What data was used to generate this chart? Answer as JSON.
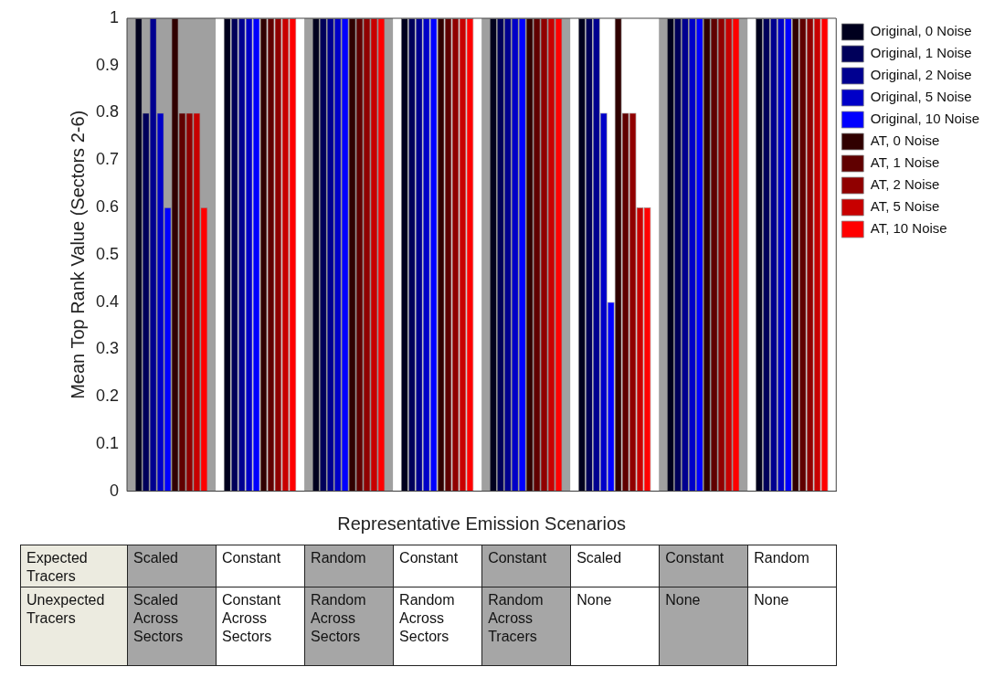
{
  "chart_data": {
    "type": "bar",
    "xlabel": "Representative Emission Scenarios",
    "ylabel": "Mean Top Rank Value (Sectors 2-6)",
    "categories": [
      null,
      null,
      null,
      null,
      null,
      null,
      null,
      null
    ],
    "series": [
      {
        "name": "Original, 0 Noise",
        "color": "#00001e",
        "values": [
          1,
          1,
          1,
          1,
          1,
          1,
          1,
          1
        ]
      },
      {
        "name": "Original, 1 Noise",
        "color": "#00005a",
        "values": [
          0.8,
          1,
          1,
          1,
          1,
          1,
          1,
          1
        ]
      },
      {
        "name": "Original, 2 Noise",
        "color": "#000090",
        "values": [
          1,
          1,
          1,
          1,
          1,
          1,
          1,
          1
        ]
      },
      {
        "name": "Original, 5 Noise",
        "color": "#0000c8",
        "values": [
          0.8,
          1,
          1,
          1,
          1,
          0.8,
          1,
          1
        ]
      },
      {
        "name": "Original, 10 Noise",
        "color": "#0000ff",
        "values": [
          0.6,
          1,
          1,
          1,
          1,
          0.4,
          1,
          1
        ]
      },
      {
        "name": "AT, 0 Noise",
        "color": "#300000",
        "values": [
          1,
          1,
          1,
          1,
          1,
          1,
          1,
          1
        ]
      },
      {
        "name": "AT, 1 Noise",
        "color": "#600000",
        "values": [
          0.8,
          1,
          1,
          1,
          1,
          0.8,
          1,
          1
        ]
      },
      {
        "name": "AT, 2 Noise",
        "color": "#900000",
        "values": [
          0.8,
          1,
          1,
          1,
          1,
          0.8,
          1,
          1
        ]
      },
      {
        "name": "AT, 5 Noise",
        "color": "#c80000",
        "values": [
          0.8,
          1,
          1,
          1,
          1,
          0.6,
          1,
          1
        ]
      },
      {
        "name": "AT, 10 Noise",
        "color": "#ff0000",
        "values": [
          0.6,
          1,
          1,
          1,
          1,
          0.6,
          1,
          1
        ]
      }
    ],
    "ylim": [
      0,
      1
    ],
    "yticks": [
      0,
      0.1,
      0.2,
      0.3,
      0.4,
      0.5,
      0.6,
      0.7,
      0.8,
      0.9,
      1
    ],
    "annotations": [
      "Expected Tracers",
      "Scaled",
      "Constant",
      "Random",
      "Constant",
      "Constant",
      "Scaled",
      "Constant",
      "Random",
      "Unexpected Tracers",
      "Scaled Across Sectors",
      "Constant Across Sectors",
      "Random Across Sectors",
      "Random Across Sectors",
      "Random Across Tracers",
      "None",
      "None",
      "None"
    ],
    "grid": false,
    "legend": "top right"
  }
}
